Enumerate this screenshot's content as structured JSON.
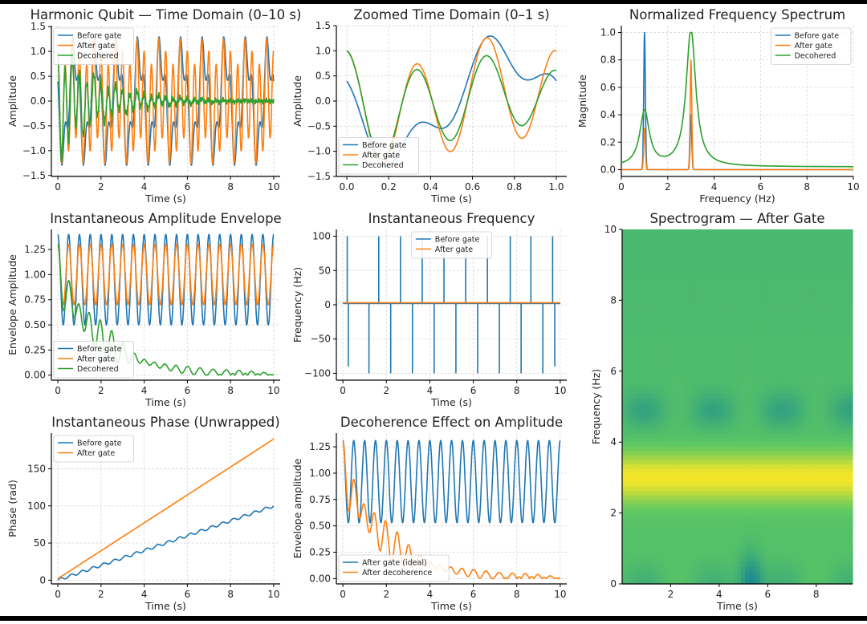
{
  "colors": {
    "before": "#1f77b4",
    "after": "#ff7f0e",
    "decohered": "#2ca02c",
    "grid": "#d9d9d9",
    "axis": "#000000"
  },
  "chart_data": [
    {
      "id": "p1",
      "type": "line",
      "title": "Harmonic Qubit — Time Domain (0–10 s)",
      "xlabel": "Time (s)",
      "ylabel": "Amplitude",
      "xlim": [
        -0.3,
        10.3
      ],
      "ylim": [
        -1.52,
        1.52
      ],
      "xticks": [
        0,
        2,
        4,
        6,
        8,
        10
      ],
      "xticklabels": [
        "0",
        "2",
        "4",
        "6",
        "8",
        "10"
      ],
      "yticks": [
        -1.5,
        -1.0,
        -0.5,
        0.0,
        0.5,
        1.0,
        1.5
      ],
      "yticklabels": [
        "−1.5",
        "−1.0",
        "−0.5",
        "0.0",
        "0.5",
        "1.0",
        "1.5"
      ],
      "legend": "top-left",
      "series": [
        {
          "name": "Before gate",
          "key": "before",
          "model": "sum",
          "components": [
            [
              1.0,
              1.0,
              0.5
            ],
            [
              0.4,
              3.0,
              0.0
            ]
          ]
        },
        {
          "name": "After gate",
          "key": "after",
          "model": "sum",
          "components": [
            [
              0.3,
              1.0,
              0.5
            ],
            [
              1.0,
              3.0,
              0.0
            ]
          ]
        },
        {
          "name": "Decohered",
          "key": "decohered",
          "model": "decay",
          "components": [
            [
              0.3,
              1.0,
              0.5
            ],
            [
              1.0,
              3.0,
              0.0
            ]
          ],
          "decay": 0.5,
          "noise": 0.08
        }
      ]
    },
    {
      "id": "p2",
      "type": "line",
      "title": "Zoomed Time Domain (0–1 s)",
      "xlabel": "Time (s)",
      "ylabel": "Amplitude",
      "xlim": [
        -0.05,
        1.05
      ],
      "ylim": [
        -1.5,
        1.5
      ],
      "xticks": [
        0.0,
        0.2,
        0.4,
        0.6,
        0.8,
        1.0
      ],
      "xticklabels": [
        "0.0",
        "0.2",
        "0.4",
        "0.6",
        "0.8",
        "1.0"
      ],
      "yticks": [
        -1.5,
        -1.0,
        -0.5,
        0.0,
        0.5,
        1.0,
        1.5
      ],
      "yticklabels": [
        "−1.5",
        "−1.0",
        "−0.5",
        "0.0",
        "0.5",
        "1.0",
        "1.5"
      ],
      "legend": "bottom-left",
      "series": [
        {
          "name": "Before gate",
          "key": "before",
          "model": "sum",
          "components": [
            [
              1.0,
              1.0,
              0.5
            ],
            [
              0.4,
              3.0,
              0.0
            ]
          ]
        },
        {
          "name": "After gate",
          "key": "after",
          "model": "sum",
          "components": [
            [
              0.3,
              1.0,
              0.5
            ],
            [
              1.0,
              3.0,
              0.0
            ]
          ]
        },
        {
          "name": "Decohered",
          "key": "decohered",
          "model": "decay",
          "components": [
            [
              0.3,
              1.0,
              0.5
            ],
            [
              1.0,
              3.0,
              0.0
            ]
          ],
          "decay": 0.5,
          "noise": 0.0
        }
      ]
    },
    {
      "id": "p3",
      "type": "line",
      "title": "Normalized Frequency Spectrum",
      "xlabel": "Frequency (Hz)",
      "ylabel": "Magnitude",
      "xlim": [
        0,
        10
      ],
      "ylim": [
        -0.05,
        1.05
      ],
      "xticks": [
        0,
        2,
        4,
        6,
        8,
        10
      ],
      "xticklabels": [
        "0",
        "2",
        "4",
        "6",
        "8",
        "10"
      ],
      "yticks": [
        0.0,
        0.2,
        0.4,
        0.6,
        0.8,
        1.0
      ],
      "yticklabels": [
        "0.0",
        "0.2",
        "0.4",
        "0.6",
        "0.8",
        "1.0"
      ],
      "legend": "top-right",
      "series": [
        {
          "name": "Before gate",
          "key": "before",
          "model": "peaks",
          "peaks": [
            [
              1.0,
              1.0,
              0.05
            ],
            [
              3.0,
              0.4,
              0.05
            ]
          ],
          "floor": 0.0
        },
        {
          "name": "After gate",
          "key": "after",
          "model": "peaks",
          "peaks": [
            [
              1.0,
              0.3,
              0.05
            ],
            [
              3.0,
              0.8,
              0.05
            ]
          ],
          "floor": 0.0
        },
        {
          "name": "Decohered",
          "key": "decohered",
          "model": "lorentz",
          "peaks": [
            [
              1.0,
              0.4,
              0.25
            ],
            [
              3.0,
              1.0,
              0.25
            ]
          ],
          "floor": 0.02
        }
      ]
    },
    {
      "id": "p4",
      "type": "line",
      "title": "Instantaneous Amplitude Envelope",
      "xlabel": "Time (s)",
      "ylabel": "Envelope Amplitude",
      "xlim": [
        -0.3,
        10.3
      ],
      "ylim": [
        -0.05,
        1.45
      ],
      "xticks": [
        0,
        2,
        4,
        6,
        8,
        10
      ],
      "xticklabels": [
        "0",
        "2",
        "4",
        "6",
        "8",
        "10"
      ],
      "yticks": [
        0.0,
        0.25,
        0.5,
        0.75,
        1.0,
        1.25
      ],
      "yticklabels": [
        "0.00",
        "0.25",
        "0.50",
        "0.75",
        "1.00",
        "1.25"
      ],
      "legend": "bottom-left",
      "series": [
        {
          "name": "Before gate",
          "key": "before",
          "model": "env",
          "base": 0.95,
          "amp": 0.45,
          "freq": 2.0
        },
        {
          "name": "After gate",
          "key": "after",
          "model": "env",
          "base": 1.0,
          "amp": 0.3,
          "freq": 2.0
        },
        {
          "name": "Decohered",
          "key": "decohered",
          "model": "envdecay",
          "base": 1.0,
          "amp": 0.3,
          "freq": 2.0,
          "decay": 0.5
        }
      ]
    },
    {
      "id": "p5",
      "type": "line",
      "title": "Instantaneous Frequency",
      "xlabel": "Time (s)",
      "ylabel": "Frequency (Hz)",
      "xlim": [
        -0.3,
        10.3
      ],
      "ylim": [
        -110,
        110
      ],
      "xticks": [
        0,
        2,
        4,
        6,
        8,
        10
      ],
      "xticklabels": [
        "0",
        "2",
        "4",
        "6",
        "8",
        "10"
      ],
      "yticks": [
        -100,
        -50,
        0,
        50,
        100
      ],
      "yticklabels": [
        "−100",
        "−50",
        "0",
        "50",
        "100"
      ],
      "legend": "top-center",
      "series": [
        {
          "name": "Before gate",
          "key": "before",
          "model": "spikes",
          "baseline": 2.0,
          "spikes": [
            [
              0.2,
              100
            ],
            [
              0.25,
              -90
            ],
            [
              1.2,
              -100
            ],
            [
              1.65,
              100
            ],
            [
              2.2,
              -100
            ],
            [
              2.65,
              100
            ],
            [
              3.2,
              -100
            ],
            [
              3.65,
              100
            ],
            [
              4.2,
              -100
            ],
            [
              4.65,
              100
            ],
            [
              5.2,
              -100
            ],
            [
              5.65,
              100
            ],
            [
              6.2,
              -100
            ],
            [
              6.65,
              100
            ],
            [
              7.2,
              -100
            ],
            [
              7.7,
              100
            ],
            [
              8.2,
              -100
            ],
            [
              8.65,
              100
            ],
            [
              9.2,
              -100
            ],
            [
              9.75,
              -90
            ],
            [
              9.65,
              100
            ]
          ]
        },
        {
          "name": "After gate",
          "key": "after",
          "model": "flat",
          "baseline": 3.0
        }
      ]
    },
    {
      "id": "p6",
      "type": "heatmap",
      "title": "Spectrogram — After Gate",
      "xlabel": "Time (s)",
      "ylabel": "Frequency (Hz)",
      "xlim": [
        0.0,
        9.5
      ],
      "ylim": [
        0,
        10
      ],
      "xticks": [
        2,
        4,
        6,
        8
      ],
      "xticklabels": [
        "2",
        "4",
        "6",
        "8"
      ],
      "yticks": [
        0,
        2,
        4,
        6,
        8,
        10
      ],
      "yticklabels": [
        "0",
        "2",
        "4",
        "6",
        "8",
        "10"
      ],
      "colormap": "viridis",
      "band_center_hz": 3.0
    },
    {
      "id": "p7",
      "type": "line",
      "title": "Instantaneous Phase (Unwrapped)",
      "xlabel": "Time (s)",
      "ylabel": "Phase (rad)",
      "xlim": [
        -0.3,
        10.3
      ],
      "ylim": [
        -5,
        198
      ],
      "xticks": [
        0,
        2,
        4,
        6,
        8,
        10
      ],
      "xticklabels": [
        "0",
        "2",
        "4",
        "6",
        "8",
        "10"
      ],
      "yticks": [
        0,
        50,
        100,
        150
      ],
      "yticklabels": [
        "0",
        "50",
        "100",
        "150"
      ],
      "legend": "top-left",
      "series": [
        {
          "name": "Before gate",
          "key": "before",
          "model": "stairs",
          "slope": 10.0,
          "start": 0.0
        },
        {
          "name": "After gate",
          "key": "after",
          "model": "linear",
          "slope": 18.8,
          "start": 2.0
        }
      ]
    },
    {
      "id": "p8",
      "type": "line",
      "title": "Decoherence Effect on Amplitude",
      "xlabel": "Time (s)",
      "ylabel": "Envelope amplitude",
      "xlim": [
        -0.3,
        10.3
      ],
      "ylim": [
        -0.05,
        1.38
      ],
      "xticks": [
        0,
        2,
        4,
        6,
        8,
        10
      ],
      "xticklabels": [
        "0",
        "2",
        "4",
        "6",
        "8",
        "10"
      ],
      "yticks": [
        0.0,
        0.25,
        0.5,
        0.75,
        1.0,
        1.25
      ],
      "yticklabels": [
        "0.00",
        "0.25",
        "0.50",
        "0.75",
        "1.00",
        "1.25"
      ],
      "legend": "bottom-left",
      "series": [
        {
          "name": "After gate (ideal)",
          "key": "before",
          "model": "env",
          "base": 0.92,
          "amp": 0.39,
          "freq": 2.0
        },
        {
          "name": "After decoherence",
          "key": "after",
          "model": "envdecay",
          "base": 1.0,
          "amp": 0.3,
          "freq": 2.0,
          "decay": 0.5
        }
      ]
    }
  ]
}
